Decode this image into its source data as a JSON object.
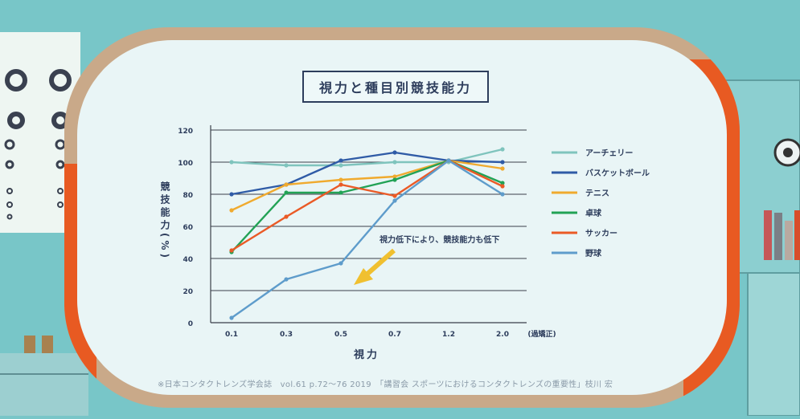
{
  "colors": {
    "background": "#78c6c8",
    "panel_frame": "#c9a989",
    "panel_accent": "#e85a22",
    "panel_inner": "#e9f5f6",
    "ink": "#2d3d5c",
    "grid": "#3a3f4a",
    "arrow": "#f0c030"
  },
  "chart_data": {
    "type": "line",
    "title": "視力と種目別競技能力",
    "xlabel": "視力",
    "ylabel": "競技能力(%)",
    "x_suffix": "(過矯正)",
    "categories": [
      "0.1",
      "0.3",
      "0.5",
      "0.7",
      "1.2",
      "2.0"
    ],
    "ylim": [
      0,
      120
    ],
    "yticks": [
      0,
      20,
      40,
      60,
      80,
      100,
      120
    ],
    "grid": true,
    "legend_position": "right",
    "annotation": "視力低下により、競技能力も低下",
    "series": [
      {
        "name": "アーチェリー",
        "color": "#7fc4bd",
        "values": [
          100,
          98,
          98,
          100,
          100,
          108
        ]
      },
      {
        "name": "バスケットボール",
        "color": "#2f5ba6",
        "values": [
          80,
          86,
          101,
          106,
          101,
          100
        ]
      },
      {
        "name": "テニス",
        "color": "#f0aa2e",
        "values": [
          70,
          86,
          89,
          91,
          101,
          96
        ]
      },
      {
        "name": "卓球",
        "color": "#22a255",
        "values": [
          44,
          81,
          81,
          89,
          101,
          87
        ]
      },
      {
        "name": "サッカー",
        "color": "#ea5a26",
        "values": [
          45,
          66,
          86,
          79,
          101,
          85
        ]
      },
      {
        "name": "野球",
        "color": "#5e9ccb",
        "values": [
          3,
          27,
          37,
          76,
          101,
          80
        ]
      }
    ]
  },
  "source_note": "※日本コンタクトレンズ学会誌　vol.61  p.72～76  2019　「講習会  スポーツにおけるコンタクトレンズの重要性」枝川 宏"
}
